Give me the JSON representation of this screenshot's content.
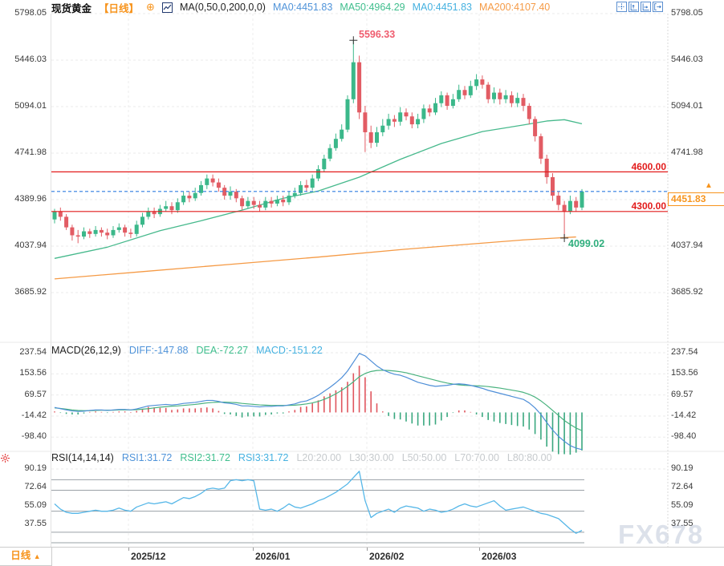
{
  "header": {
    "title": "现货黄金",
    "period": "【日线】",
    "add_icon": "⊕",
    "ma_params": "MA(0,50,0,200,0,0)",
    "ma_items": [
      {
        "label": "MA0:4451.83",
        "color": "#4f93d9"
      },
      {
        "label": "MA50:4964.29",
        "color": "#3fbe8d"
      },
      {
        "label": "MA0:4451.83",
        "color": "#45b1e0"
      },
      {
        "label": "MA200:4107.40",
        "color": "#f59a45"
      }
    ]
  },
  "toolbar": {
    "icons": [
      "pan",
      "axis-zoom-vertical",
      "axis-zoom-horizontal",
      "reset-view"
    ]
  },
  "macd_header": {
    "params": "MACD(26,12,9)",
    "diff": "DIFF:-147.88",
    "dea": "DEA:-72.27",
    "macd": "MACD:-151.22"
  },
  "rsi_header": {
    "params": "RSI(14,14,14)",
    "rsi1": "RSI1:31.72",
    "rsi2": "RSI2:31.72",
    "rsi3": "RSI3:31.72",
    "levels_legend": [
      "L20:20.00",
      "L30:30.00",
      "L50:50.00",
      "L70:70.00",
      "L80:80.00"
    ]
  },
  "price_tag": {
    "value": "4451.83",
    "arrow": "▲"
  },
  "level_labels": {
    "upper": "4600.00",
    "lower": "4300.00"
  },
  "annotations": {
    "high": "5596.33",
    "low": "4099.02"
  },
  "bottom": {
    "tab": "日线",
    "tab_arrow": "▲",
    "dates": [
      "2025/12",
      "2026/01",
      "2026/02",
      "2026/03"
    ]
  },
  "watermark": "FX678",
  "chart_data": [
    {
      "type": "candlestick",
      "title": "现货黄金 日线",
      "y_ticks": [
        5798.05,
        5446.03,
        5094.01,
        4741.98,
        4389.96,
        4037.94,
        3685.92
      ],
      "up_color": "#3bb88a",
      "down_color": "#e25c64",
      "last_price": 4451.83,
      "levels": [
        {
          "value": 4600,
          "color": "#e21b1b"
        },
        {
          "value": 4300,
          "color": "#e21b1b"
        }
      ],
      "high_marker": {
        "index": 51,
        "price": 5596.33
      },
      "low_marker": {
        "index": 87,
        "price": 4099.02
      },
      "overlays": {
        "ma50": {
          "name": "MA50",
          "color": "#46b98c",
          "points": [
            [
              0,
              3945
            ],
            [
              9,
              4030
            ],
            [
              18,
              4155
            ],
            [
              25,
              4230
            ],
            [
              32,
              4310
            ],
            [
              39,
              4400
            ],
            [
              45,
              4455
            ],
            [
              52,
              4560
            ],
            [
              59,
              4695
            ],
            [
              66,
              4815
            ],
            [
              73,
              4905
            ],
            [
              80,
              4955
            ],
            [
              84,
              4985
            ],
            [
              87,
              4995
            ],
            [
              90,
              4964.29
            ]
          ]
        },
        "ma200": {
          "name": "MA200",
          "color": "#f59a45",
          "points": [
            [
              0,
              3790
            ],
            [
              15,
              3845
            ],
            [
              30,
              3900
            ],
            [
              45,
              3955
            ],
            [
              60,
              4015
            ],
            [
              70,
              4050
            ],
            [
              80,
              4085
            ],
            [
              86,
              4100
            ],
            [
              89,
              4107.4
            ]
          ]
        }
      },
      "candles": [
        [
          4240,
          4320,
          4210,
          4300
        ],
        [
          4300,
          4330,
          4230,
          4260
        ],
        [
          4260,
          4280,
          4160,
          4180
        ],
        [
          4180,
          4200,
          4080,
          4120
        ],
        [
          4120,
          4160,
          4060,
          4110
        ],
        [
          4110,
          4180,
          4090,
          4150
        ],
        [
          4150,
          4170,
          4100,
          4130
        ],
        [
          4130,
          4190,
          4110,
          4160
        ],
        [
          4160,
          4180,
          4110,
          4140
        ],
        [
          4140,
          4170,
          4090,
          4120
        ],
        [
          4120,
          4190,
          4100,
          4160
        ],
        [
          4160,
          4210,
          4140,
          4180
        ],
        [
          4180,
          4200,
          4110,
          4140
        ],
        [
          4140,
          4170,
          4100,
          4130
        ],
        [
          4130,
          4230,
          4110,
          4200
        ],
        [
          4200,
          4290,
          4180,
          4260
        ],
        [
          4260,
          4330,
          4240,
          4300
        ],
        [
          4300,
          4330,
          4250,
          4280
        ],
        [
          4280,
          4350,
          4260,
          4320
        ],
        [
          4320,
          4380,
          4300,
          4340
        ],
        [
          4340,
          4370,
          4280,
          4310
        ],
        [
          4310,
          4400,
          4290,
          4370
        ],
        [
          4370,
          4450,
          4350,
          4420
        ],
        [
          4420,
          4450,
          4370,
          4400
        ],
        [
          4400,
          4480,
          4380,
          4440
        ],
        [
          4440,
          4530,
          4420,
          4500
        ],
        [
          4500,
          4580,
          4470,
          4550
        ],
        [
          4550,
          4580,
          4490,
          4520
        ],
        [
          4520,
          4550,
          4450,
          4480
        ],
        [
          4480,
          4500,
          4390,
          4420
        ],
        [
          4420,
          4490,
          4390,
          4450
        ],
        [
          4450,
          4470,
          4370,
          4400
        ],
        [
          4400,
          4420,
          4310,
          4340
        ],
        [
          4340,
          4410,
          4320,
          4380
        ],
        [
          4380,
          4410,
          4320,
          4350
        ],
        [
          4350,
          4380,
          4300,
          4330
        ],
        [
          4330,
          4410,
          4310,
          4380
        ],
        [
          4380,
          4410,
          4330,
          4360
        ],
        [
          4360,
          4420,
          4340,
          4390
        ],
        [
          4390,
          4420,
          4340,
          4370
        ],
        [
          4370,
          4450,
          4350,
          4420
        ],
        [
          4420,
          4480,
          4400,
          4440
        ],
        [
          4440,
          4530,
          4420,
          4500
        ],
        [
          4500,
          4540,
          4450,
          4480
        ],
        [
          4480,
          4580,
          4460,
          4550
        ],
        [
          4550,
          4650,
          4530,
          4620
        ],
        [
          4620,
          4730,
          4600,
          4700
        ],
        [
          4700,
          4810,
          4680,
          4780
        ],
        [
          4780,
          4890,
          4760,
          4850
        ],
        [
          4850,
          4960,
          4830,
          4920
        ],
        [
          4920,
          5180,
          4900,
          5150
        ],
        [
          5150,
          5596.33,
          5120,
          5430
        ],
        [
          5430,
          5480,
          5000,
          5050
        ],
        [
          5050,
          5100,
          4750,
          4900
        ],
        [
          4900,
          4950,
          4780,
          4820
        ],
        [
          4820,
          4940,
          4790,
          4900
        ],
        [
          4900,
          5000,
          4870,
          4950
        ],
        [
          4950,
          5040,
          4920,
          5000
        ],
        [
          5000,
          5030,
          4940,
          4980
        ],
        [
          4980,
          5090,
          4950,
          5050
        ],
        [
          5050,
          5080,
          4990,
          5020
        ],
        [
          5020,
          5050,
          4930,
          4960
        ],
        [
          4960,
          5040,
          4930,
          5000
        ],
        [
          5000,
          5110,
          4970,
          5080
        ],
        [
          5080,
          5110,
          5020,
          5050
        ],
        [
          5050,
          5160,
          5030,
          5120
        ],
        [
          5120,
          5210,
          5090,
          5180
        ],
        [
          5180,
          5200,
          5070,
          5100
        ],
        [
          5100,
          5190,
          5080,
          5150
        ],
        [
          5150,
          5260,
          5130,
          5220
        ],
        [
          5220,
          5250,
          5150,
          5180
        ],
        [
          5180,
          5290,
          5160,
          5250
        ],
        [
          5250,
          5340,
          5220,
          5300
        ],
        [
          5300,
          5330,
          5230,
          5260
        ],
        [
          5260,
          5280,
          5120,
          5150
        ],
        [
          5150,
          5240,
          5120,
          5200
        ],
        [
          5200,
          5230,
          5110,
          5150
        ],
        [
          5150,
          5220,
          5120,
          5180
        ],
        [
          5180,
          5210,
          5090,
          5120
        ],
        [
          5120,
          5200,
          5090,
          5160
        ],
        [
          5160,
          5190,
          5060,
          5100
        ],
        [
          5100,
          5120,
          4960,
          5000
        ],
        [
          5000,
          5020,
          4830,
          4870
        ],
        [
          4870,
          4890,
          4660,
          4700
        ],
        [
          4700,
          4730,
          4510,
          4560
        ],
        [
          4560,
          4590,
          4380,
          4420
        ],
        [
          4420,
          4450,
          4310,
          4350
        ],
        [
          4350,
          4380,
          4099.02,
          4300
        ],
        [
          4300,
          4420,
          4280,
          4380
        ],
        [
          4380,
          4410,
          4300,
          4330
        ],
        [
          4330,
          4470,
          4310,
          4451.83
        ]
      ]
    },
    {
      "type": "macd",
      "title": "MACD(26,12,9)",
      "y_ticks": [
        237.54,
        153.56,
        69.57,
        -14.42,
        -98.4
      ],
      "diff_color": "#4f8fd8",
      "dea_color": "#49b27e",
      "bar_up_color": "#e0565e",
      "bar_down_color": "#3aa87f",
      "diff": [
        20,
        15,
        10,
        6,
        4,
        5,
        8,
        10,
        10,
        8,
        10,
        12,
        12,
        10,
        14,
        20,
        26,
        28,
        30,
        32,
        30,
        32,
        36,
        38,
        40,
        44,
        48,
        48,
        44,
        38,
        36,
        32,
        26,
        26,
        24,
        22,
        24,
        24,
        26,
        26,
        30,
        34,
        42,
        46,
        56,
        68,
        84,
        100,
        118,
        138,
        165,
        200,
        235,
        225,
        205,
        185,
        170,
        160,
        152,
        148,
        140,
        130,
        120,
        114,
        108,
        104,
        106,
        108,
        112,
        114,
        112,
        108,
        102,
        96,
        88,
        82,
        76,
        70,
        64,
        58,
        52,
        38,
        18,
        -8,
        -40,
        -70,
        -95,
        -115,
        -132,
        -142,
        -147.88
      ],
      "dea": [
        18,
        16,
        13,
        10,
        8,
        7,
        7,
        8,
        9,
        9,
        9,
        10,
        10,
        10,
        11,
        13,
        15,
        18,
        21,
        23,
        25,
        26,
        28,
        30,
        32,
        35,
        38,
        40,
        41,
        41,
        40,
        39,
        36,
        34,
        32,
        30,
        29,
        28,
        28,
        28,
        28,
        29,
        31,
        34,
        38,
        44,
        52,
        62,
        74,
        88,
        104,
        122,
        142,
        155,
        163,
        167,
        168,
        167,
        165,
        162,
        158,
        152,
        146,
        140,
        134,
        128,
        122,
        117,
        113,
        110,
        108,
        107,
        106,
        105,
        103,
        100,
        97,
        93,
        89,
        85,
        80,
        72,
        61,
        46,
        28,
        8,
        -12,
        -32,
        -48,
        -62,
        -72.27
      ]
    },
    {
      "type": "line",
      "title": "RSI(14,14,14)",
      "y_ticks": [
        90.19,
        72.64,
        55.09,
        37.55
      ],
      "levels": [
        20,
        30,
        50,
        70,
        80
      ],
      "color": "#56b7e8",
      "values": [
        57,
        52,
        49,
        48,
        48,
        49,
        50,
        51,
        50,
        50,
        51,
        53,
        51,
        50,
        54,
        56,
        58,
        57,
        58,
        59,
        57,
        60,
        63,
        62,
        64,
        67,
        71,
        72,
        71,
        72,
        79,
        80,
        79,
        80,
        79,
        52,
        51,
        52,
        50,
        53,
        57,
        54,
        53,
        55,
        57,
        60,
        62,
        65,
        68,
        72,
        76,
        82,
        88,
        60,
        44,
        48,
        50,
        52,
        49,
        53,
        55,
        54,
        53,
        50,
        52,
        51,
        49,
        50,
        52,
        55,
        57,
        55,
        54,
        56,
        58,
        60,
        55,
        51,
        52,
        53,
        54,
        52,
        50,
        48,
        47,
        45,
        43,
        38,
        33,
        29,
        31.72
      ]
    }
  ]
}
